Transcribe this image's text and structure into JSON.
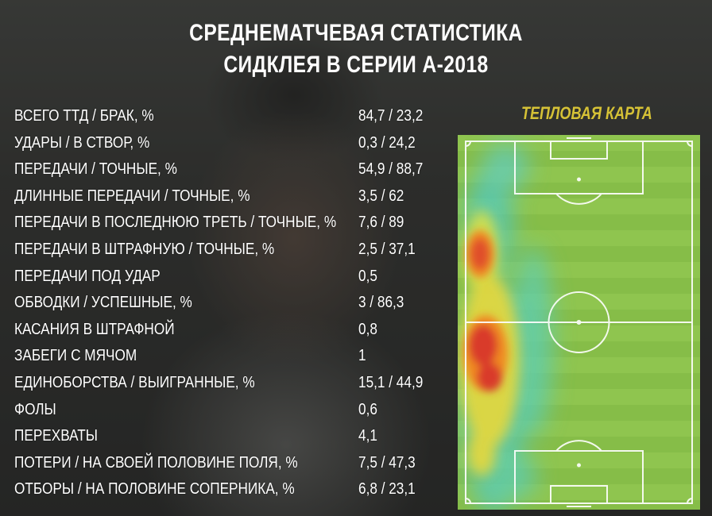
{
  "title": {
    "line1": "СРЕДНЕМАТЧЕВАЯ СТАТИСТИКА",
    "line2": "СИДКЛЕЯ В СЕРИИ А-2018"
  },
  "heatmap": {
    "title": "ТЕПЛОВАЯ КАРТА",
    "pitch_color": "#8bc34a",
    "title_color": "#d6c236"
  },
  "stats": [
    {
      "label": "ВСЕГО ТТД / БРАК, %",
      "value": "84,7 / 23,2"
    },
    {
      "label": "УДАРЫ / В СТВОР, %",
      "value": "0,3 / 24,2"
    },
    {
      "label": "ПЕРЕДАЧИ / ТОЧНЫЕ, %",
      "value": "54,9 / 88,7"
    },
    {
      "label": "ДЛИННЫЕ ПЕРЕДАЧИ / ТОЧНЫЕ, %",
      "value": "3,5 / 62"
    },
    {
      "label": "ПЕРЕДАЧИ В ПОСЛЕДНЮЮ ТРЕТЬ / ТОЧНЫЕ, %",
      "value": "7,6 / 89"
    },
    {
      "label": "ПЕРЕДАЧИ В ШТРАФНУЮ / ТОЧНЫЕ, %",
      "value": "2,5 / 37,1"
    },
    {
      "label": "ПЕРЕДАЧИ ПОД УДАР",
      "value": "0,5"
    },
    {
      "label": "ОБВОДКИ / УСПЕШНЫЕ, %",
      "value": "3 / 86,3"
    },
    {
      "label": "КАСАНИЯ В ШТРАФНОЙ",
      "value": "0,8"
    },
    {
      "label": "ЗАБЕГИ С МЯЧОМ",
      "value": "1"
    },
    {
      "label": "ЕДИНОБОРСТВА / ВЫИГРАННЫЕ, %",
      "value": "15,1 / 44,9"
    },
    {
      "label": "ФОЛЫ",
      "value": "0,6"
    },
    {
      "label": "ПЕРЕХВАТЫ",
      "value": "4,1"
    },
    {
      "label": "ПОТЕРИ / НА СВОЕЙ ПОЛОВИНЕ ПОЛЯ, %",
      "value": "7,5 / 47,3"
    },
    {
      "label": "ОТБОРЫ / НА ПОЛОВИНЕ СОПЕРНИКА, %",
      "value": "6,8 / 23,1"
    }
  ]
}
